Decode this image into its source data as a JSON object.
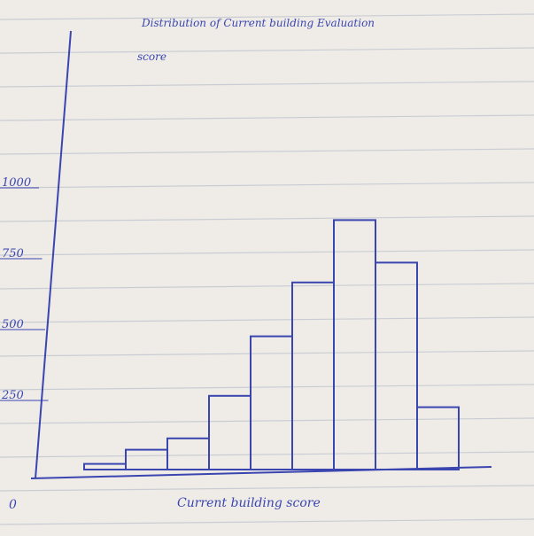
{
  "chart_data": {
    "type": "bar",
    "title": "Distribution of Current building Evaluation",
    "subtitle": "score",
    "xlabel": "Current building score",
    "ylabel": "",
    "origin_label": "0",
    "y_ticks": [
      {
        "value": 250,
        "label": "250"
      },
      {
        "value": 500,
        "label": "500"
      },
      {
        "value": 750,
        "label": "750"
      },
      {
        "value": 1000,
        "label": "1000"
      }
    ],
    "ylim": [
      0,
      1200
    ],
    "values": [
      20,
      70,
      110,
      260,
      470,
      660,
      880,
      730,
      220
    ],
    "grid": false,
    "colors": {
      "ink": "#3a45b0",
      "paper": "#efece7",
      "rule": "#c9cdd3"
    }
  }
}
